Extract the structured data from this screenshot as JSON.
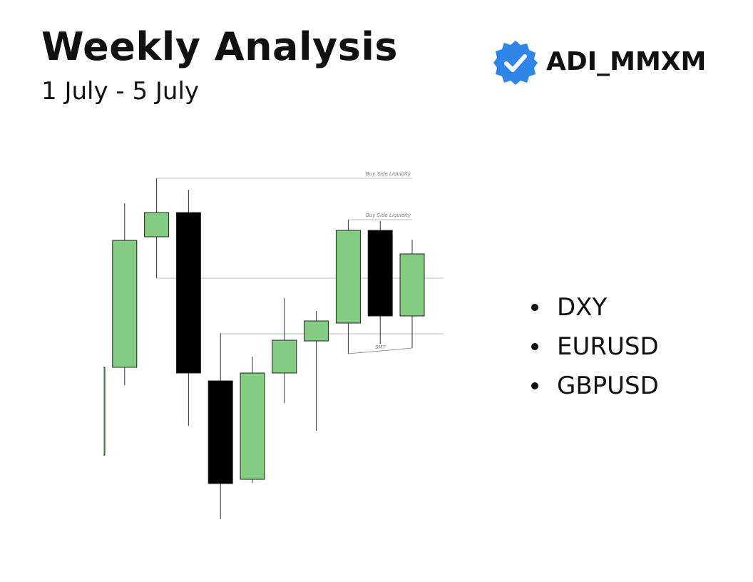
{
  "header": {
    "title": "Weekly Analysis",
    "subtitle": "1 July - 5 July"
  },
  "brand": {
    "name": "ADI_MMXM"
  },
  "bullets": [
    "DXY",
    "EURUSD",
    "GBPUSD"
  ],
  "chart_data": {
    "type": "candlestick",
    "open": [
      16.2,
      28.5,
      46.8,
      50.2,
      26.6,
      12.8,
      27.7,
      32.2,
      34.7,
      47.7,
      35.7
    ],
    "high": [
      28.5,
      51.5,
      55.0,
      53.4,
      33.3,
      30.0,
      38.2,
      36.4,
      49.2,
      49.0,
      46.4
    ],
    "low": [
      16.2,
      26.0,
      41.0,
      20.3,
      7.2,
      12.3,
      23.5,
      19.6,
      30.4,
      31.8,
      31.2
    ],
    "close": [
      28.5,
      46.3,
      50.2,
      27.7,
      12.2,
      27.7,
      32.3,
      35.0,
      47.7,
      35.7,
      44.4
    ],
    "up_color": "#84cc82",
    "down_color": "#000000",
    "ylim": [
      5,
      60
    ],
    "levels": [
      {
        "label": "Buy Side Liquidity",
        "value": 55.0
      },
      {
        "label": "Buy Side Liquidity",
        "value": 49.2
      },
      {
        "value": 41.0
      },
      {
        "value": 33.2
      }
    ],
    "annotations": [
      "SMT"
    ]
  }
}
